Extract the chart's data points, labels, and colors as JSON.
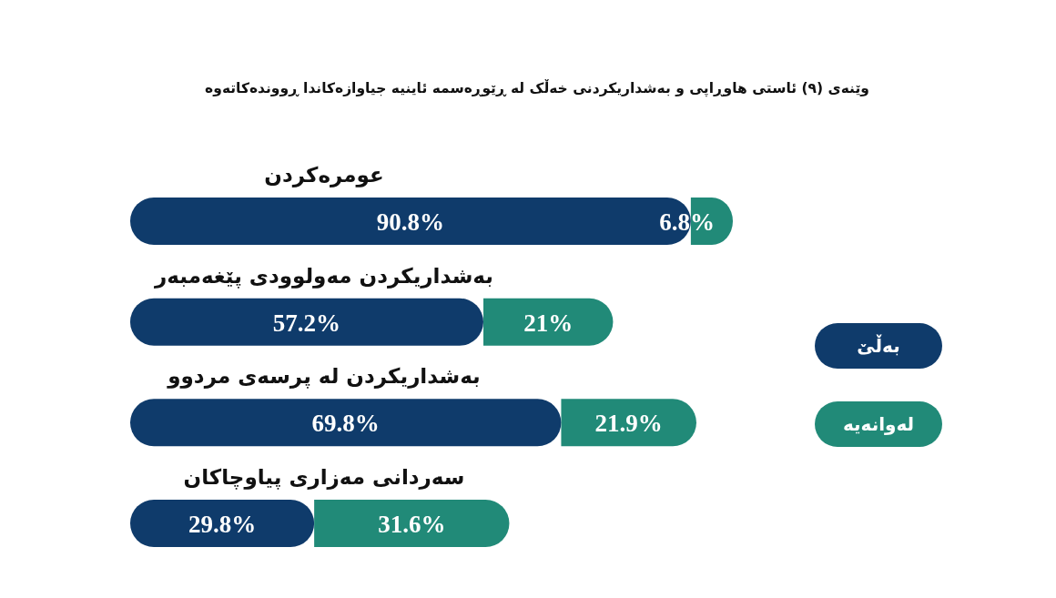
{
  "chart_data": {
    "type": "bar",
    "orientation": "horizontal",
    "stacked": true,
    "title": "وێنەی (٩) ئاستی هاوڕاپی و بەشداریکردنی خەڵک لە ڕێوڕەسمە ئاینیە جیاوازەکاندا ڕووندەکاتەوە",
    "categories": [
      "عومرەکردن",
      "بەشداریکردن مەولوودی پێغەمبەر",
      "بەشداریکردن لە پرسەی مردوو",
      "سەردانی مەزاری پیاوچاکان"
    ],
    "series": [
      {
        "name": "بەڵێ",
        "color": "#0f3b6b",
        "values": [
          90.8,
          57.2,
          69.8,
          29.8
        ],
        "value_labels": [
          "90.8%",
          "57.2%",
          "69.8%",
          "29.8%"
        ]
      },
      {
        "name": "لەوانەیە",
        "color": "#218a78",
        "values": [
          6.8,
          21,
          21.9,
          31.6
        ],
        "value_labels": [
          "6.8%",
          "21%",
          "21.9%",
          "31.6%"
        ]
      }
    ],
    "legend": "right"
  }
}
